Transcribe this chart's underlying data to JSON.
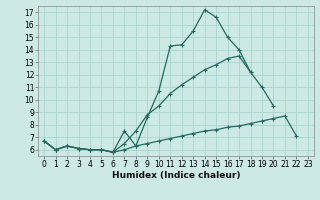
{
  "x_values": [
    0,
    1,
    2,
    3,
    4,
    5,
    6,
    7,
    8,
    9,
    10,
    11,
    12,
    13,
    14,
    15,
    16,
    17,
    18,
    19,
    20,
    21,
    22,
    23
  ],
  "line1": [
    6.7,
    6.0,
    6.3,
    6.1,
    6.0,
    6.0,
    5.8,
    7.5,
    6.3,
    8.6,
    10.7,
    14.3,
    14.4,
    15.5,
    17.2,
    16.6,
    15.0,
    14.0,
    12.2,
    null,
    null,
    null,
    null,
    null
  ],
  "line2": [
    6.7,
    6.0,
    6.3,
    6.1,
    6.0,
    6.0,
    5.8,
    6.5,
    7.5,
    8.8,
    9.5,
    10.5,
    11.2,
    11.8,
    12.4,
    12.8,
    13.3,
    13.5,
    12.2,
    11.0,
    9.5,
    null,
    null,
    null
  ],
  "line3": [
    6.7,
    6.0,
    6.3,
    6.1,
    6.0,
    6.0,
    5.8,
    6.0,
    6.3,
    6.5,
    6.7,
    6.9,
    7.1,
    7.3,
    7.5,
    7.6,
    7.8,
    7.9,
    8.1,
    8.3,
    8.5,
    8.7,
    7.1,
    null
  ],
  "line_color": "#236b5e",
  "bg_color": "#cce9e4",
  "grid_color": "#aad4ce",
  "xlabel": "Humidex (Indice chaleur)",
  "ylim": [
    5.5,
    17.5
  ],
  "xlim": [
    -0.5,
    23.5
  ],
  "yticks": [
    6,
    7,
    8,
    9,
    10,
    11,
    12,
    13,
    14,
    15,
    16,
    17
  ],
  "xticks": [
    0,
    1,
    2,
    3,
    4,
    5,
    6,
    7,
    8,
    9,
    10,
    11,
    12,
    13,
    14,
    15,
    16,
    17,
    18,
    19,
    20,
    21,
    22,
    23
  ],
  "marker_size": 2.2,
  "line_width": 0.9,
  "tick_fontsize": 5.5,
  "xlabel_fontsize": 6.5
}
